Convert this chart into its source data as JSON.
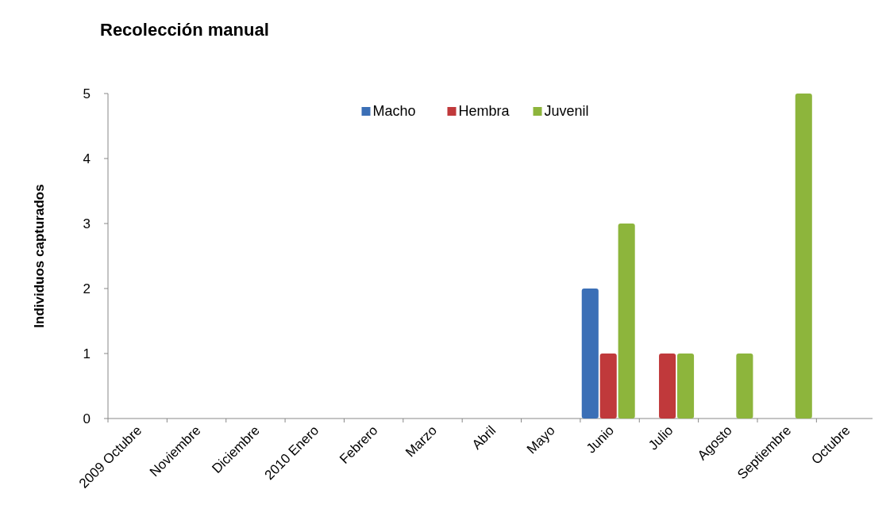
{
  "chart_data": {
    "type": "bar",
    "title": "Recolección manual",
    "ylabel": "Individuos capturados",
    "categories": [
      "2009 Octubre",
      "Noviembre",
      "Diciembre",
      "2010 Enero",
      "Febrero",
      "Marzo",
      "Abril",
      "Mayo",
      "Junio",
      "Julio",
      "Agosto",
      "Septiembre",
      "Octubre"
    ],
    "series": [
      {
        "name": "Macho",
        "color": "#3b6fb6",
        "values": [
          0,
          0,
          0,
          0,
          0,
          0,
          0,
          0,
          2,
          0,
          0,
          0,
          0
        ]
      },
      {
        "name": "Hembra",
        "color": "#c0393b",
        "values": [
          0,
          0,
          0,
          0,
          0,
          0,
          0,
          0,
          1,
          1,
          0,
          0,
          0
        ]
      },
      {
        "name": "Juvenil",
        "color": "#8db53c",
        "values": [
          0,
          0,
          0,
          0,
          0,
          0,
          0,
          0,
          3,
          1,
          1,
          5,
          0
        ]
      }
    ],
    "ylim": [
      0,
      5
    ],
    "yticks": [
      0,
      1,
      2,
      3,
      4,
      5
    ],
    "grid": false,
    "legend": "top"
  }
}
